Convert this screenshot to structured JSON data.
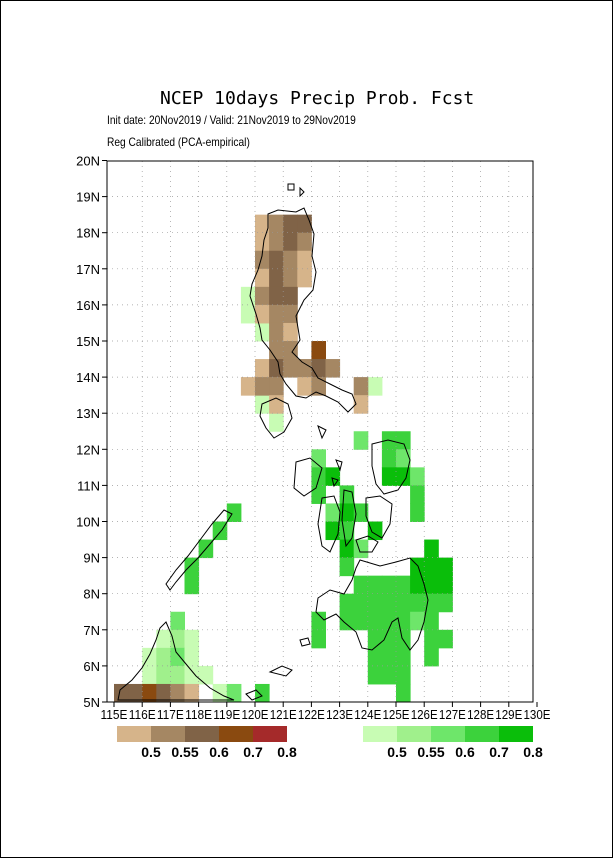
{
  "title": "NCEP 10days Precip Prob. Fcst",
  "subtitle_line1": "Init date: 20Nov2019 / Valid: 21Nov2019 to 29Nov2019",
  "subtitle_line2": "Reg Calibrated (PCA-empirical)",
  "lat_labels": [
    "20N",
    "19N",
    "18N",
    "17N",
    "16N",
    "15N",
    "14N",
    "13N",
    "12N",
    "11N",
    "10N",
    "9N",
    "8N",
    "7N",
    "6N",
    "5N"
  ],
  "lon_labels": [
    "115E",
    "116E",
    "117E",
    "118E",
    "119E",
    "120E",
    "121E",
    "122E",
    "123E",
    "124E",
    "125E",
    "126E",
    "127E",
    "128E",
    "129E",
    "130E"
  ],
  "colors": {
    "dry": [
      "#d6b48a",
      "#a58763",
      "#806347",
      "#8a4a10",
      "#a52a2a"
    ],
    "wet": [
      "#c8fcb4",
      "#a0f08c",
      "#6ee66a",
      "#3cd23c",
      "#0abe0a"
    ]
  },
  "legend_dry_labels": [
    "0.5",
    "0.55",
    "0.6",
    "0.7",
    "0.8"
  ],
  "legend_wet_labels": [
    "0.5",
    "0.55",
    "0.6",
    "0.7",
    "0.8"
  ],
  "dry_cells": [
    {
      "lon": 120.25,
      "lat": 18.25,
      "c": 0
    },
    {
      "lon": 120.75,
      "lat": 18.25,
      "c": 1
    },
    {
      "lon": 121.25,
      "lat": 18.25,
      "c": 2
    },
    {
      "lon": 121.75,
      "lat": 18.25,
      "c": 2
    },
    {
      "lon": 120.25,
      "lat": 17.75,
      "c": 0
    },
    {
      "lon": 120.75,
      "lat": 17.75,
      "c": 1
    },
    {
      "lon": 121.25,
      "lat": 17.75,
      "c": 2
    },
    {
      "lon": 121.75,
      "lat": 17.75,
      "c": 1
    },
    {
      "lon": 120.25,
      "lat": 17.25,
      "c": 1
    },
    {
      "lon": 120.75,
      "lat": 17.25,
      "c": 2
    },
    {
      "lon": 121.25,
      "lat": 17.25,
      "c": 1
    },
    {
      "lon": 121.75,
      "lat": 17.25,
      "c": 0
    },
    {
      "lon": 120.25,
      "lat": 16.75,
      "c": 0
    },
    {
      "lon": 120.75,
      "lat": 16.75,
      "c": 2
    },
    {
      "lon": 121.25,
      "lat": 16.75,
      "c": 1
    },
    {
      "lon": 121.75,
      "lat": 16.75,
      "c": 0
    },
    {
      "lon": 120.25,
      "lat": 16.25,
      "c": 1
    },
    {
      "lon": 120.75,
      "lat": 16.25,
      "c": 2
    },
    {
      "lon": 121.25,
      "lat": 16.25,
      "c": 2
    },
    {
      "lon": 120.25,
      "lat": 15.75,
      "c": 0
    },
    {
      "lon": 120.75,
      "lat": 15.75,
      "c": 1
    },
    {
      "lon": 121.25,
      "lat": 15.75,
      "c": 1
    },
    {
      "lon": 120.75,
      "lat": 15.25,
      "c": 1
    },
    {
      "lon": 121.25,
      "lat": 15.25,
      "c": 0
    },
    {
      "lon": 120.75,
      "lat": 14.75,
      "c": 1
    },
    {
      "lon": 121.25,
      "lat": 14.75,
      "c": 1
    },
    {
      "lon": 122.25,
      "lat": 14.75,
      "c": 3
    },
    {
      "lon": 120.25,
      "lat": 14.25,
      "c": 0
    },
    {
      "lon": 120.75,
      "lat": 14.25,
      "c": 2
    },
    {
      "lon": 121.25,
      "lat": 14.25,
      "c": 1
    },
    {
      "lon": 121.75,
      "lat": 14.25,
      "c": 1
    },
    {
      "lon": 122.25,
      "lat": 14.25,
      "c": 2
    },
    {
      "lon": 122.75,
      "lat": 14.25,
      "c": 1
    },
    {
      "lon": 119.75,
      "lat": 13.75,
      "c": 0
    },
    {
      "lon": 120.25,
      "lat": 13.75,
      "c": 1
    },
    {
      "lon": 120.75,
      "lat": 13.75,
      "c": 1
    },
    {
      "lon": 121.75,
      "lat": 13.75,
      "c": 0
    },
    {
      "lon": 122.25,
      "lat": 13.75,
      "c": 1
    },
    {
      "lon": 123.75,
      "lat": 13.75,
      "c": 1
    },
    {
      "lon": 120.75,
      "lat": 13.25,
      "c": 0
    },
    {
      "lon": 123.75,
      "lat": 13.25,
      "c": 0
    },
    {
      "lon": 115.25,
      "lat": 5.25,
      "c": 2
    },
    {
      "lon": 115.75,
      "lat": 5.25,
      "c": 2
    },
    {
      "lon": 116.25,
      "lat": 5.25,
      "c": 3
    },
    {
      "lon": 116.75,
      "lat": 5.25,
      "c": 2
    },
    {
      "lon": 117.25,
      "lat": 5.25,
      "c": 1
    },
    {
      "lon": 117.75,
      "lat": 5.25,
      "c": 0
    }
  ],
  "wet_cells": [
    {
      "lon": 119.75,
      "lat": 16.25,
      "c": 0
    },
    {
      "lon": 119.75,
      "lat": 15.75,
      "c": 0
    },
    {
      "lon": 120.25,
      "lat": 15.25,
      "c": 0
    },
    {
      "lon": 120.25,
      "lat": 13.25,
      "c": 0
    },
    {
      "lon": 120.75,
      "lat": 12.75,
      "c": 0
    },
    {
      "lon": 124.25,
      "lat": 13.75,
      "c": 0
    },
    {
      "lon": 123.75,
      "lat": 12.25,
      "c": 2
    },
    {
      "lon": 122.25,
      "lat": 11.75,
      "c": 2
    },
    {
      "lon": 124.75,
      "lat": 12.25,
      "c": 3
    },
    {
      "lon": 125.25,
      "lat": 12.25,
      "c": 3
    },
    {
      "lon": 124.75,
      "lat": 11.75,
      "c": 3
    },
    {
      "lon": 125.25,
      "lat": 11.75,
      "c": 2
    },
    {
      "lon": 122.25,
      "lat": 11.25,
      "c": 3
    },
    {
      "lon": 122.75,
      "lat": 11.25,
      "c": 4
    },
    {
      "lon": 124.75,
      "lat": 11.25,
      "c": 4
    },
    {
      "lon": 125.25,
      "lat": 11.25,
      "c": 4
    },
    {
      "lon": 125.75,
      "lat": 11.25,
      "c": 2
    },
    {
      "lon": 122.25,
      "lat": 10.75,
      "c": 3
    },
    {
      "lon": 123.25,
      "lat": 10.75,
      "c": 3
    },
    {
      "lon": 125.75,
      "lat": 10.75,
      "c": 3
    },
    {
      "lon": 122.75,
      "lat": 10.25,
      "c": 2
    },
    {
      "lon": 123.25,
      "lat": 10.25,
      "c": 4
    },
    {
      "lon": 123.75,
      "lat": 10.25,
      "c": 3
    },
    {
      "lon": 125.75,
      "lat": 10.25,
      "c": 3
    },
    {
      "lon": 119.25,
      "lat": 10.25,
      "c": 3
    },
    {
      "lon": 118.75,
      "lat": 9.75,
      "c": 3
    },
    {
      "lon": 122.75,
      "lat": 9.75,
      "c": 4
    },
    {
      "lon": 123.25,
      "lat": 9.75,
      "c": 3
    },
    {
      "lon": 124.25,
      "lat": 9.75,
      "c": 4
    },
    {
      "lon": 118.25,
      "lat": 9.25,
      "c": 3
    },
    {
      "lon": 123.25,
      "lat": 9.25,
      "c": 4
    },
    {
      "lon": 123.75,
      "lat": 9.25,
      "c": 2
    },
    {
      "lon": 126.25,
      "lat": 9.25,
      "c": 4
    },
    {
      "lon": 117.75,
      "lat": 8.75,
      "c": 3
    },
    {
      "lon": 123.25,
      "lat": 8.75,
      "c": 3
    },
    {
      "lon": 125.75,
      "lat": 8.75,
      "c": 4
    },
    {
      "lon": 126.25,
      "lat": 8.75,
      "c": 4
    },
    {
      "lon": 126.75,
      "lat": 8.75,
      "c": 4
    },
    {
      "lon": 117.75,
      "lat": 8.25,
      "c": 3
    },
    {
      "lon": 123.75,
      "lat": 8.25,
      "c": 3
    },
    {
      "lon": 124.25,
      "lat": 8.25,
      "c": 3
    },
    {
      "lon": 124.75,
      "lat": 8.25,
      "c": 3
    },
    {
      "lon": 125.25,
      "lat": 8.25,
      "c": 3
    },
    {
      "lon": 125.75,
      "lat": 8.25,
      "c": 4
    },
    {
      "lon": 126.25,
      "lat": 8.25,
      "c": 4
    },
    {
      "lon": 126.75,
      "lat": 8.25,
      "c": 4
    },
    {
      "lon": 123.25,
      "lat": 7.75,
      "c": 3
    },
    {
      "lon": 123.75,
      "lat": 7.75,
      "c": 3
    },
    {
      "lon": 124.25,
      "lat": 7.75,
      "c": 3
    },
    {
      "lon": 124.75,
      "lat": 7.75,
      "c": 3
    },
    {
      "lon": 125.25,
      "lat": 7.75,
      "c": 3
    },
    {
      "lon": 125.75,
      "lat": 7.75,
      "c": 3
    },
    {
      "lon": 126.25,
      "lat": 7.75,
      "c": 3
    },
    {
      "lon": 126.75,
      "lat": 7.75,
      "c": 3
    },
    {
      "lon": 122.25,
      "lat": 7.25,
      "c": 3
    },
    {
      "lon": 123.25,
      "lat": 7.25,
      "c": 3
    },
    {
      "lon": 123.75,
      "lat": 7.25,
      "c": 3
    },
    {
      "lon": 124.25,
      "lat": 7.25,
      "c": 3
    },
    {
      "lon": 124.75,
      "lat": 7.25,
      "c": 3
    },
    {
      "lon": 125.25,
      "lat": 7.25,
      "c": 3
    },
    {
      "lon": 125.75,
      "lat": 7.25,
      "c": 2
    },
    {
      "lon": 126.25,
      "lat": 7.25,
      "c": 3
    },
    {
      "lon": 117.25,
      "lat": 7.25,
      "c": 2
    },
    {
      "lon": 122.25,
      "lat": 6.75,
      "c": 3
    },
    {
      "lon": 124.25,
      "lat": 6.75,
      "c": 3
    },
    {
      "lon": 124.75,
      "lat": 6.75,
      "c": 3
    },
    {
      "lon": 125.25,
      "lat": 6.75,
      "c": 3
    },
    {
      "lon": 126.25,
      "lat": 6.75,
      "c": 3
    },
    {
      "lon": 126.75,
      "lat": 6.75,
      "c": 3
    },
    {
      "lon": 116.75,
      "lat": 6.75,
      "c": 0
    },
    {
      "lon": 117.25,
      "lat": 6.75,
      "c": 1
    },
    {
      "lon": 117.75,
      "lat": 6.75,
      "c": 0
    },
    {
      "lon": 124.25,
      "lat": 6.25,
      "c": 3
    },
    {
      "lon": 124.75,
      "lat": 6.25,
      "c": 3
    },
    {
      "lon": 125.25,
      "lat": 6.25,
      "c": 3
    },
    {
      "lon": 126.25,
      "lat": 6.25,
      "c": 3
    },
    {
      "lon": 116.25,
      "lat": 6.25,
      "c": 0
    },
    {
      "lon": 116.75,
      "lat": 6.25,
      "c": 1
    },
    {
      "lon": 117.25,
      "lat": 6.25,
      "c": 2
    },
    {
      "lon": 117.75,
      "lat": 6.25,
      "c": 0
    },
    {
      "lon": 124.25,
      "lat": 5.75,
      "c": 3
    },
    {
      "lon": 124.75,
      "lat": 5.75,
      "c": 3
    },
    {
      "lon": 125.25,
      "lat": 5.75,
      "c": 3
    },
    {
      "lon": 116.25,
      "lat": 5.75,
      "c": 0
    },
    {
      "lon": 116.75,
      "lat": 5.75,
      "c": 1
    },
    {
      "lon": 117.25,
      "lat": 5.75,
      "c": 1
    },
    {
      "lon": 117.75,
      "lat": 5.75,
      "c": 0
    },
    {
      "lon": 118.25,
      "lat": 5.75,
      "c": 0
    },
    {
      "lon": 125.25,
      "lat": 5.25,
      "c": 3
    },
    {
      "lon": 118.75,
      "lat": 5.25,
      "c": 0
    },
    {
      "lon": 119.25,
      "lat": 5.25,
      "c": 2
    },
    {
      "lon": 120.25,
      "lat": 5.25,
      "c": 3
    }
  ]
}
